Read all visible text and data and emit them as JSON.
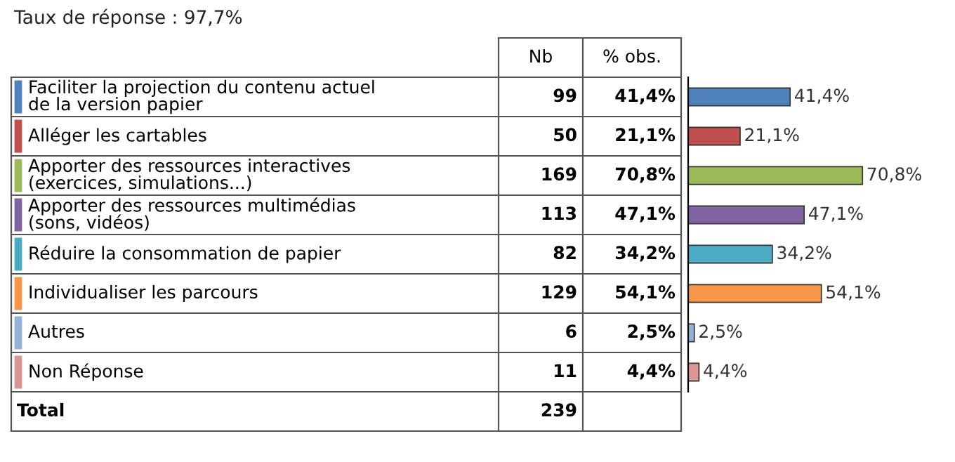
{
  "chart_data": {
    "type": "bar",
    "orientation": "horizontal",
    "title": "Taux de réponse : 97,7%",
    "categories": [
      "Faciliter la projection du contenu actuel\nde la version papier",
      "Alléger les cartables",
      "Apporter des ressources interactives\n(exercices, simulations...)",
      "Apporter des ressources multimédias\n(sons, vidéos)",
      "Réduire la consommation de papier",
      "Individualiser les parcours",
      "Autres",
      "Non Réponse"
    ],
    "values": [
      41.4,
      21.1,
      70.8,
      47.1,
      34.2,
      54.1,
      2.5,
      4.4
    ],
    "colors": [
      "#4f81bd",
      "#c0504d",
      "#9bbb59",
      "#8064a2",
      "#4bacc6",
      "#f79646",
      "#95b3d7",
      "#d99694"
    ],
    "value_labels": [
      "41,4%",
      "21,1%",
      "70,8%",
      "47,1%",
      "34,2%",
      "54,1%",
      "2,5%",
      "4,4%"
    ],
    "annotations": [
      "Nb",
      "% obs.",
      "99",
      "50",
      "169",
      "113",
      "82",
      "129",
      "6",
      "11",
      "Total",
      "239"
    ]
  }
}
